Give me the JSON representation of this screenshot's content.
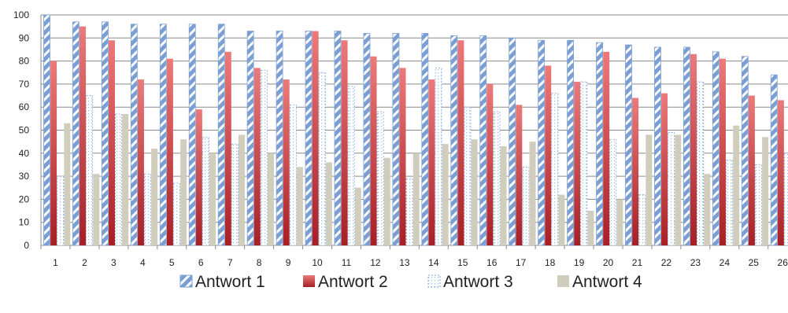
{
  "chart_data": {
    "type": "bar",
    "title": "",
    "xlabel": "",
    "ylabel": "",
    "ylim": [
      0,
      100
    ],
    "yticks": [
      0,
      10,
      20,
      30,
      40,
      50,
      60,
      70,
      80,
      90,
      100
    ],
    "grid": true,
    "legend_position": "bottom",
    "categories": [
      "1",
      "2",
      "3",
      "4",
      "5",
      "6",
      "7",
      "8",
      "9",
      "10",
      "11",
      "12",
      "13",
      "14",
      "15",
      "16",
      "17",
      "18",
      "19",
      "20",
      "21",
      "22",
      "23",
      "24",
      "25",
      "26"
    ],
    "series": [
      {
        "name": "Antwort 1",
        "color": "#7c9fd3",
        "pattern": "diagonal-stripes",
        "values": [
          100,
          97,
          97,
          96,
          96,
          96,
          96,
          93,
          93,
          93,
          93,
          92,
          92,
          92,
          91,
          91,
          90,
          89,
          89,
          88,
          87,
          86,
          86,
          84,
          82,
          74
        ]
      },
      {
        "name": "Antwort 2",
        "color": "#c0393b",
        "pattern": "gradient",
        "values": [
          80,
          95,
          89,
          72,
          81,
          59,
          84,
          77,
          72,
          93,
          89,
          82,
          77,
          72,
          89,
          70,
          61,
          78,
          71,
          84,
          64,
          66,
          83,
          81,
          65,
          63
        ]
      },
      {
        "name": "Antwort 3",
        "color": "#6f9bd6",
        "pattern": "dotted-outline",
        "values": [
          30,
          65,
          57,
          31,
          27,
          47,
          44,
          76,
          61,
          75,
          69,
          58,
          29,
          77,
          60,
          58,
          34,
          66,
          71,
          46,
          22,
          49,
          71,
          37,
          35,
          40
        ]
      },
      {
        "name": "Antwort 4",
        "color": "#d1cdbd",
        "pattern": "solid",
        "values": [
          53,
          31,
          57,
          42,
          46,
          40,
          48,
          40,
          34,
          36,
          25,
          38,
          40,
          44,
          46,
          43,
          45,
          22,
          15,
          20,
          48,
          48,
          31,
          52,
          47,
          46
        ]
      }
    ]
  }
}
